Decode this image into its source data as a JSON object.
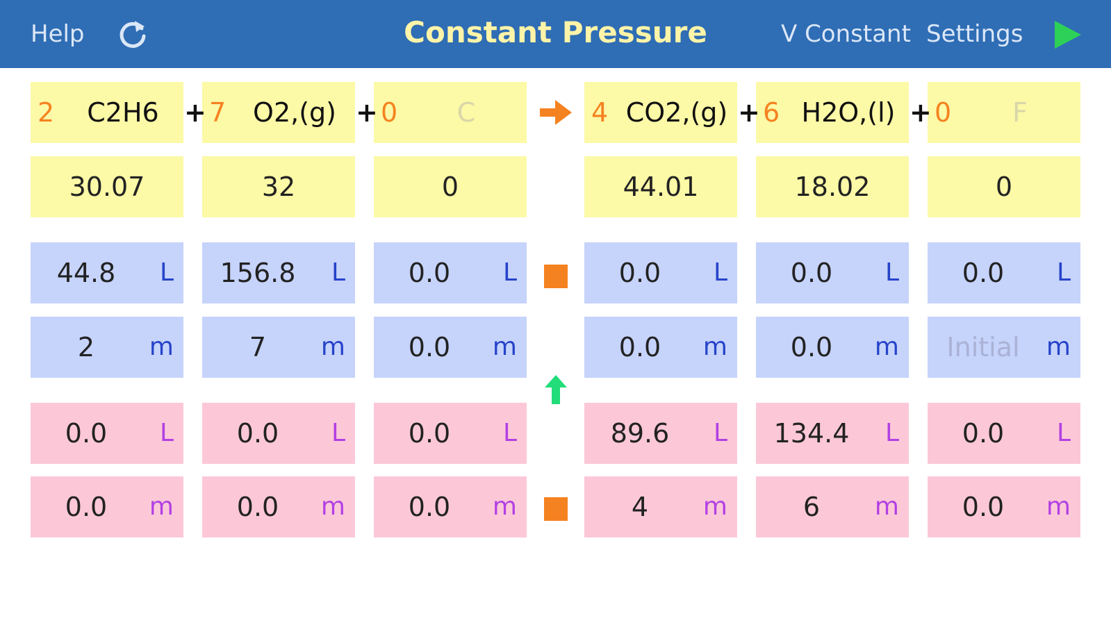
{
  "nav": {
    "help": "Help",
    "title": "Constant Pressure",
    "v_constant": "V Constant",
    "settings": "Settings"
  },
  "colors": {
    "nav_bar": "#2f6db5",
    "title": "#fff4a8",
    "coefficient": "#f58220",
    "play": "#2ed158",
    "up_arrow": "#22dd7a",
    "reactant_arrow": "#f58220",
    "liters_unit": "#2643c9",
    "moles_unit": "#b340e3",
    "yellow_cell": "#fcf9a7",
    "blue_cell": "#c6d3fb",
    "pink_cell": "#fcc8d8"
  },
  "equation": {
    "plus": "+",
    "species": [
      {
        "coef": "2",
        "formula": "C2H6",
        "molar_mass": "30.07",
        "initial_volume": "44.8",
        "initial_moles": "2",
        "final_volume": "0.0",
        "final_moles": "0.0"
      },
      {
        "coef": "7",
        "formula": "O2,(g)",
        "molar_mass": "32",
        "initial_volume": "156.8",
        "initial_moles": "7",
        "final_volume": "0.0",
        "final_moles": "0.0"
      },
      {
        "coef": "0",
        "formula": "C",
        "molar_mass": "0",
        "initial_volume": "0.0",
        "initial_moles": "0.0",
        "final_volume": "0.0",
        "final_moles": "0.0"
      },
      {
        "coef": "4",
        "formula": "CO2,(g)",
        "molar_mass": "44.01",
        "initial_volume": "0.0",
        "initial_moles": "0.0",
        "final_volume": "89.6",
        "final_moles": "4"
      },
      {
        "coef": "6",
        "formula": "H2O,(l)",
        "molar_mass": "18.02",
        "initial_volume": "0.0",
        "initial_moles": "0.0",
        "final_volume": "134.4",
        "final_moles": "6"
      },
      {
        "coef": "0",
        "formula": "F",
        "molar_mass": "0",
        "initial_volume": "0.0",
        "initial_moles": "Initial",
        "final_volume": "0.0",
        "final_moles": "0.0"
      }
    ]
  },
  "units": {
    "liters": "L",
    "moles": "m"
  },
  "icons": {
    "refresh": "refresh-icon",
    "play": "play-icon",
    "reaction_arrow": "arrow-right-icon",
    "up_arrow": "arrow-up-icon",
    "stop_top": "stop-square-icon",
    "stop_bottom": "stop-square-icon"
  }
}
